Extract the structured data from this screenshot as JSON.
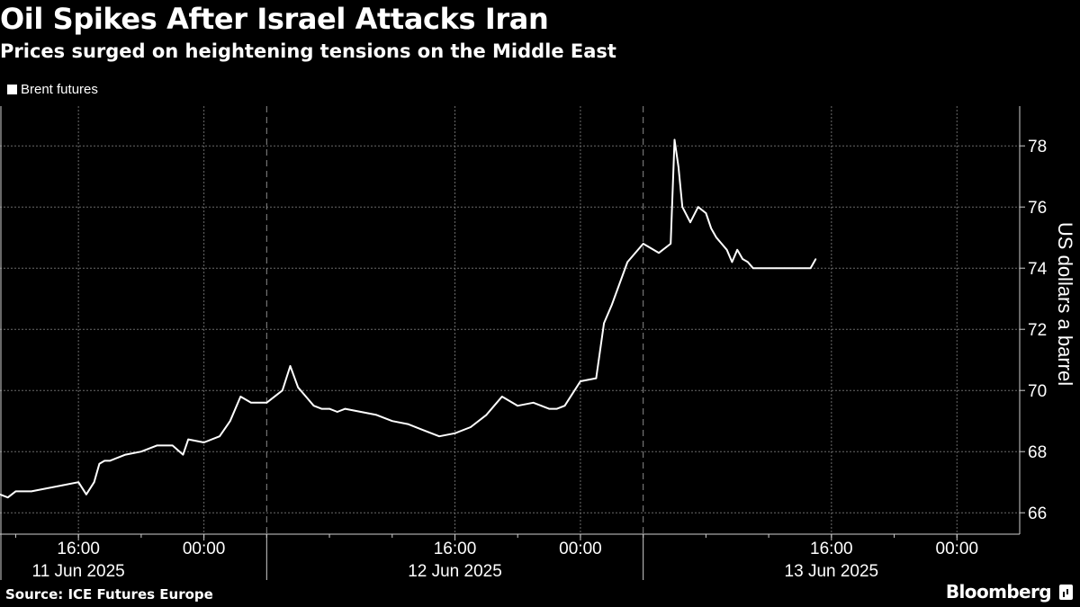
{
  "header": {
    "title": "Oil Spikes After Israel Attacks Iran",
    "subtitle": "Prices surged on heightening tensions on the Middle East"
  },
  "footer": {
    "source": "Source: ICE Futures Europe",
    "brand": "Bloomberg"
  },
  "colors": {
    "background": "#000000",
    "line": "#ffffff",
    "grid": "#6b6b6b"
  },
  "chart_data": {
    "type": "line",
    "title": "Oil Spikes After Israel Attacks Iran",
    "subtitle": "Prices surged on heightening tensions on the Middle East",
    "legend": [
      "Brent futures"
    ],
    "legend_position": "top-left",
    "xlabel": "",
    "ylabel": "US dollars a barrel",
    "ylim": [
      65.3,
      79.3
    ],
    "yticks": [
      66,
      68,
      70,
      72,
      74,
      76,
      78
    ],
    "xrange": [
      "2025-06-11 11:00",
      "2025-06-14 04:00"
    ],
    "xticks": [
      {
        "label": "16:00",
        "t": "2025-06-11 16:00"
      },
      {
        "label": "00:00",
        "t": "2025-06-12 00:00"
      },
      {
        "label": "16:00",
        "t": "2025-06-12 16:00"
      },
      {
        "label": "00:00",
        "t": "2025-06-13 00:00"
      },
      {
        "label": "16:00",
        "t": "2025-06-13 16:00"
      },
      {
        "label": "00:00",
        "t": "2025-06-14 00:00"
      }
    ],
    "date_labels": [
      {
        "label": "11 Jun 2025",
        "t": "2025-06-11 16:00"
      },
      {
        "label": "12 Jun 2025",
        "t": "2025-06-12 16:00"
      },
      {
        "label": "13 Jun 2025",
        "t": "2025-06-13 16:00"
      }
    ],
    "grid": true,
    "series": [
      {
        "name": "Brent futures",
        "x": [
          "2025-06-11 11:00",
          "2025-06-11 11:30",
          "2025-06-11 12:00",
          "2025-06-11 13:00",
          "2025-06-11 14:00",
          "2025-06-11 15:00",
          "2025-06-11 16:00",
          "2025-06-11 16:30",
          "2025-06-11 17:00",
          "2025-06-11 17:20",
          "2025-06-11 17:40",
          "2025-06-11 18:00",
          "2025-06-11 19:00",
          "2025-06-11 20:00",
          "2025-06-11 21:00",
          "2025-06-11 22:00",
          "2025-06-11 22:40",
          "2025-06-11 23:00",
          "2025-06-12 00:00",
          "2025-06-12 01:00",
          "2025-06-12 01:40",
          "2025-06-12 02:20",
          "2025-06-12 03:00",
          "2025-06-12 04:00",
          "2025-06-12 05:00",
          "2025-06-12 05:30",
          "2025-06-12 06:00",
          "2025-06-12 06:30",
          "2025-06-12 07:00",
          "2025-06-12 07:30",
          "2025-06-12 08:00",
          "2025-06-12 08:30",
          "2025-06-12 09:00",
          "2025-06-12 10:00",
          "2025-06-12 11:00",
          "2025-06-12 12:00",
          "2025-06-12 13:00",
          "2025-06-12 14:00",
          "2025-06-12 15:00",
          "2025-06-12 16:00",
          "2025-06-12 17:00",
          "2025-06-12 18:00",
          "2025-06-12 18:30",
          "2025-06-12 19:00",
          "2025-06-12 20:00",
          "2025-06-12 21:00",
          "2025-06-12 22:00",
          "2025-06-12 22:30",
          "2025-06-12 23:00",
          "2025-06-13 00:00",
          "2025-06-13 01:00",
          "2025-06-13 01:30",
          "2025-06-13 02:00",
          "2025-06-13 03:00",
          "2025-06-13 04:00",
          "2025-06-13 05:00",
          "2025-06-13 05:45",
          "2025-06-13 06:00",
          "2025-06-13 06:15",
          "2025-06-13 06:30",
          "2025-06-13 07:00",
          "2025-06-13 07:30",
          "2025-06-13 08:00",
          "2025-06-13 08:20",
          "2025-06-13 08:40",
          "2025-06-13 09:00",
          "2025-06-13 09:20",
          "2025-06-13 09:40",
          "2025-06-13 10:00",
          "2025-06-13 10:20",
          "2025-06-13 10:40",
          "2025-06-13 11:00",
          "2025-06-13 11:30",
          "2025-06-13 12:00",
          "2025-06-13 12:30",
          "2025-06-13 13:00",
          "2025-06-13 13:30",
          "2025-06-13 14:00",
          "2025-06-13 14:20",
          "2025-06-13 14:40",
          "2025-06-13 15:00"
        ],
        "values": [
          66.6,
          66.5,
          66.7,
          66.7,
          66.8,
          66.9,
          67.0,
          66.6,
          67.0,
          67.6,
          67.7,
          67.7,
          67.9,
          68.0,
          68.2,
          68.2,
          67.9,
          68.4,
          68.3,
          68.5,
          69.0,
          69.8,
          69.6,
          69.6,
          70.0,
          70.8,
          70.1,
          69.8,
          69.5,
          69.4,
          69.4,
          69.3,
          69.4,
          69.3,
          69.2,
          69.0,
          68.9,
          68.7,
          68.5,
          68.6,
          68.8,
          69.2,
          69.5,
          69.8,
          69.5,
          69.6,
          69.4,
          69.4,
          69.5,
          70.3,
          70.4,
          72.2,
          72.8,
          74.2,
          74.8,
          74.5,
          74.8,
          78.2,
          77.3,
          76.0,
          75.5,
          76.0,
          75.8,
          75.3,
          75.0,
          74.8,
          74.6,
          74.2,
          74.6,
          74.3,
          74.2,
          74.0,
          74.0,
          74.0,
          74.0,
          74.0,
          74.0,
          74.0,
          74.0,
          74.0,
          74.3
        ]
      }
    ]
  }
}
